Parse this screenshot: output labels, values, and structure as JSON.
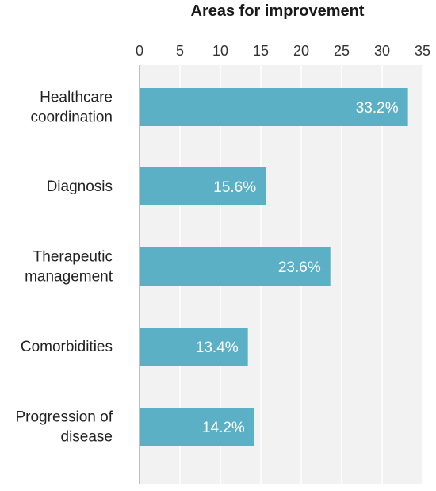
{
  "chart_data": {
    "type": "bar",
    "orientation": "horizontal",
    "title": "Areas for improvement",
    "xlabel": "",
    "ylabel": "",
    "xlim": [
      0,
      35
    ],
    "xticks": [
      0,
      5,
      10,
      15,
      20,
      25,
      30,
      35
    ],
    "tick_labels": [
      "0",
      "5",
      "10",
      "15",
      "20",
      "25",
      "30",
      "35"
    ],
    "axis_position": "top",
    "grid": true,
    "categories": [
      [
        "Healthcare",
        "coordination"
      ],
      [
        "Diagnosis"
      ],
      [
        "Therapeutic",
        "management"
      ],
      [
        "Comorbidities"
      ],
      [
        "Progression of",
        "disease"
      ]
    ],
    "values": [
      33.2,
      15.6,
      23.6,
      13.4,
      14.2
    ],
    "data_labels": [
      "33.2%",
      "15.6%",
      "23.6%",
      "13.4%",
      "14.2%"
    ],
    "colors": {
      "bar": "#5BB0C6",
      "plot_background": "#F2F2F2",
      "grid": "#FFFFFF",
      "axis": "#AAAAAA"
    }
  }
}
